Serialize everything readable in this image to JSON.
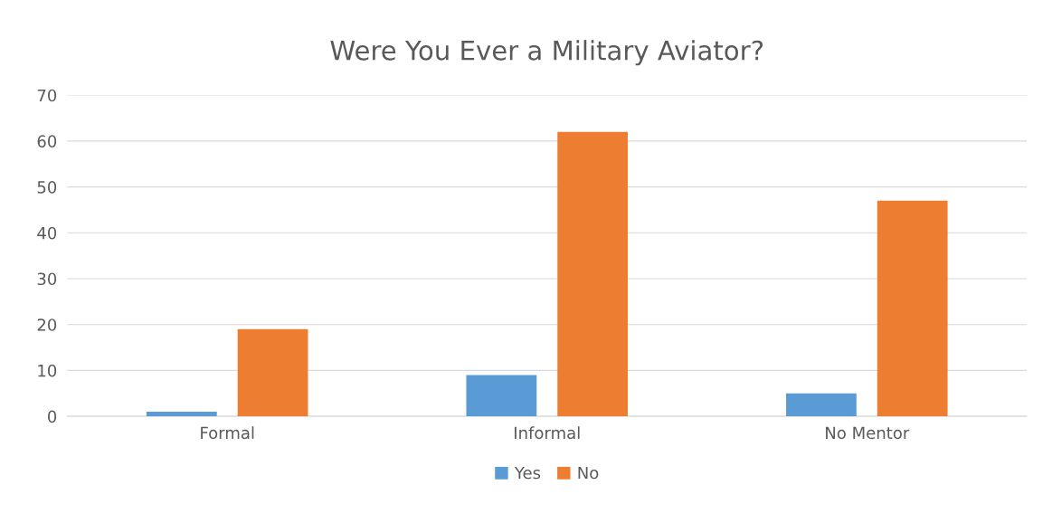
{
  "chart_data": {
    "type": "bar",
    "title": "Were You Ever a Military Aviator?",
    "categories": [
      "Formal",
      "Informal",
      "No Mentor"
    ],
    "series": [
      {
        "name": "Yes",
        "color": "#5b9bd5",
        "values": [
          1,
          9,
          5
        ]
      },
      {
        "name": "No",
        "color": "#ed7d31",
        "values": [
          19,
          62,
          47
        ]
      }
    ],
    "ylim": [
      0,
      70
    ],
    "yticks": [
      0,
      10,
      20,
      30,
      40,
      50,
      60,
      70
    ],
    "grid": "y",
    "legend": "bottom"
  }
}
